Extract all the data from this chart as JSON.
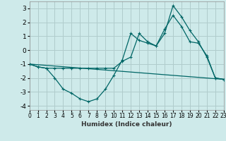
{
  "xlabel": "Humidex (Indice chaleur)",
  "bg_color": "#ceeaea",
  "grid_color": "#b0cccc",
  "line_color": "#006666",
  "xlim": [
    0,
    23
  ],
  "ylim": [
    -4.3,
    3.5
  ],
  "xticks": [
    0,
    1,
    2,
    3,
    4,
    5,
    6,
    7,
    8,
    9,
    10,
    11,
    12,
    13,
    14,
    15,
    16,
    17,
    18,
    19,
    20,
    21,
    22,
    23
  ],
  "yticks": [
    -4,
    -3,
    -2,
    -1,
    0,
    1,
    2,
    3
  ],
  "line1_y": [
    -1.0,
    -1.2,
    -1.3,
    -2.0,
    -2.8,
    -3.1,
    -3.5,
    -3.7,
    -3.5,
    -2.8,
    -1.8,
    -0.7,
    1.2,
    0.7,
    0.5,
    0.3,
    1.5,
    2.5,
    1.7,
    0.6,
    0.5,
    -0.4,
    -2.0,
    -2.1
  ],
  "line2_y": [
    -1.0,
    -1.2,
    -1.3,
    -1.3,
    -1.3,
    -1.3,
    -1.3,
    -1.3,
    -1.3,
    -1.3,
    -1.3,
    -0.8,
    -0.5,
    1.2,
    0.6,
    0.3,
    1.2,
    3.2,
    2.4,
    1.4,
    0.6,
    -0.5,
    -2.0,
    -2.1
  ],
  "line3_x": [
    0,
    23
  ],
  "line3_y": [
    -1.0,
    -2.1
  ]
}
